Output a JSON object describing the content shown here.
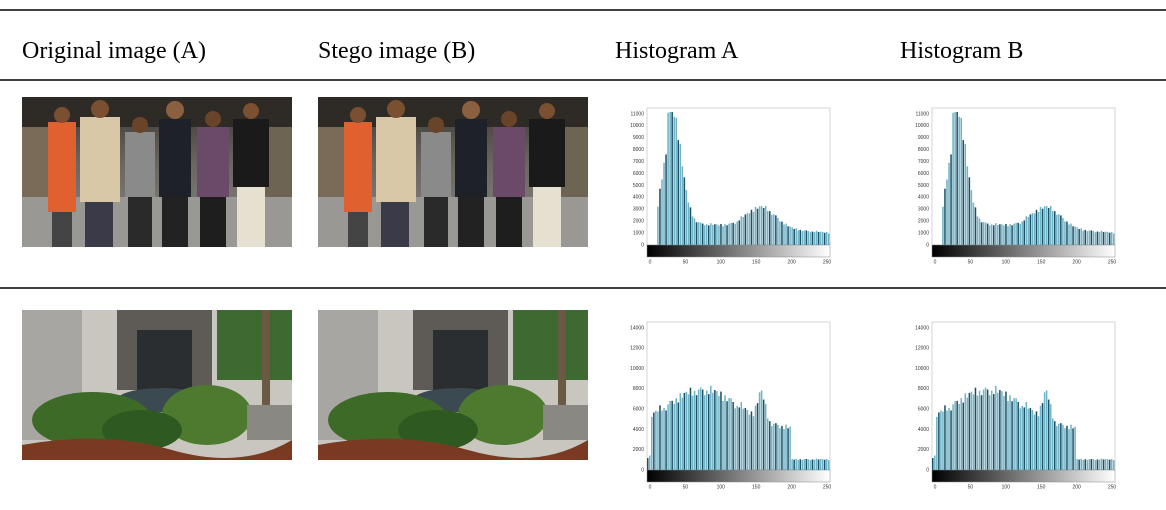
{
  "table": {
    "headers": [
      "Original image (A)",
      "Stego image (B)",
      "Histogram A",
      "Histogram B"
    ],
    "histogram_axes": [
      {
        "y_labels": [
          "0",
          "1000",
          "2000",
          "3000",
          "4000",
          "5000",
          "6000",
          "7000",
          "8000",
          "9000",
          "10000",
          "11000"
        ],
        "x_labels": [
          "0",
          "50",
          "100",
          "150",
          "200",
          "250"
        ]
      },
      {
        "y_labels": [
          "0",
          "2000",
          "4000",
          "6000",
          "8000",
          "10000",
          "12000",
          "14000"
        ],
        "x_labels": [
          "0",
          "50",
          "100",
          "150",
          "200",
          "250"
        ]
      }
    ]
  }
}
